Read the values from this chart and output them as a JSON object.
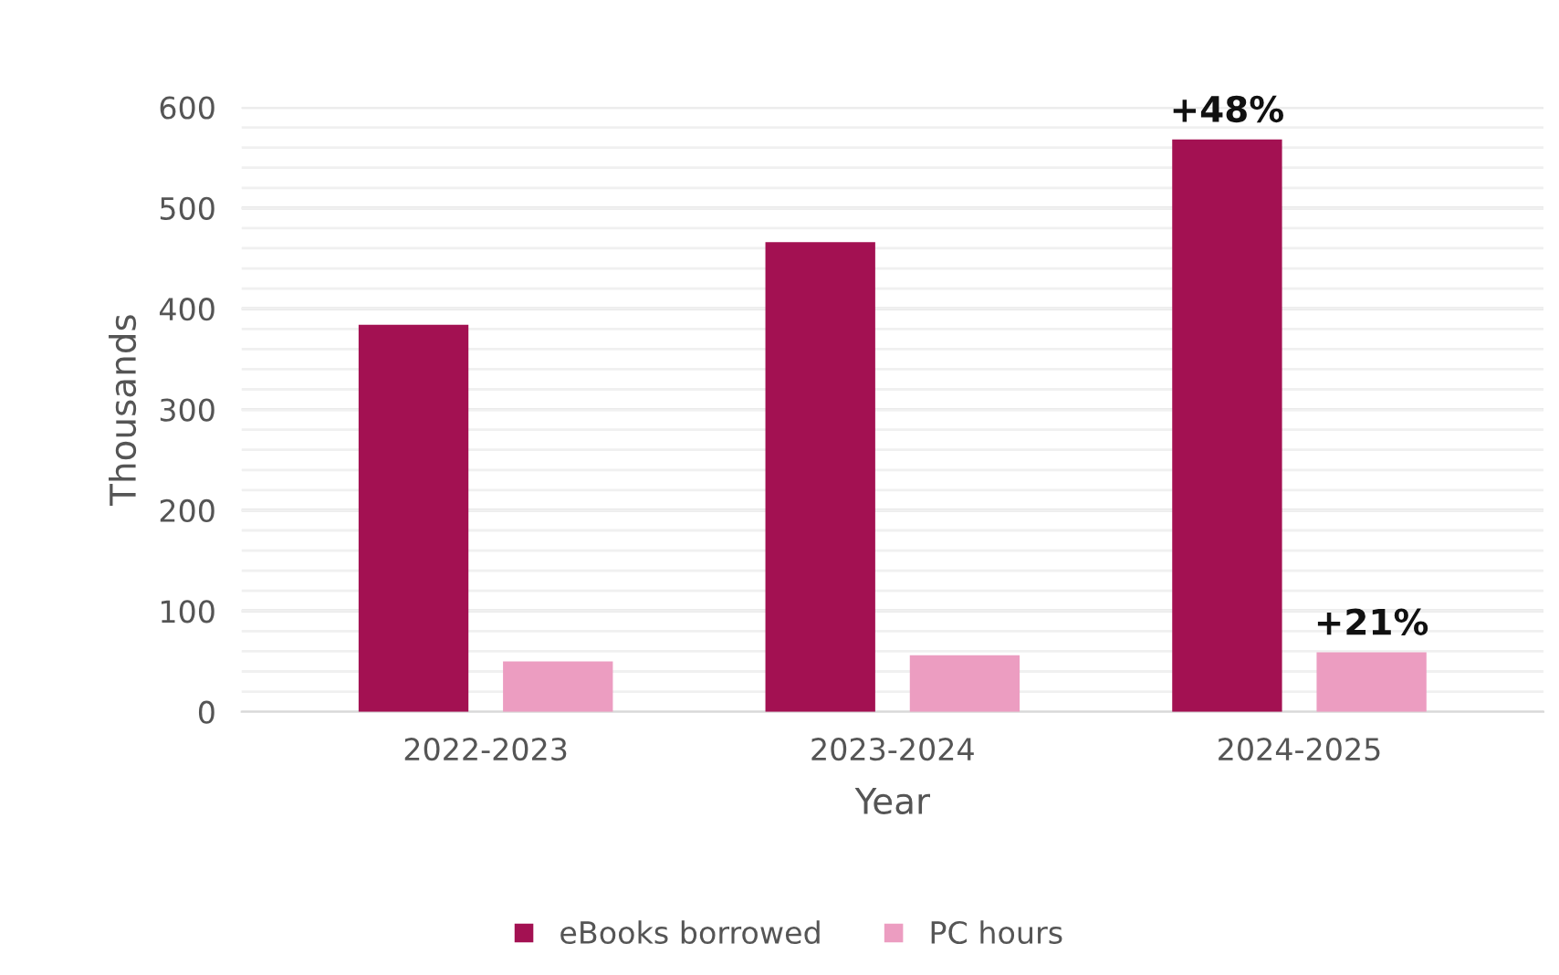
{
  "chart_data": {
    "type": "bar",
    "xlabel": "Year",
    "ylabel": "Thousands",
    "categories": [
      "2022-2023",
      "2023-2024",
      "2024-2025"
    ],
    "series": [
      {
        "name": "eBooks borrowed",
        "color": "#a31152",
        "values": [
          384,
          466,
          568
        ]
      },
      {
        "name": "PC hours",
        "color": "#ec9dc1",
        "values": [
          50,
          56,
          59
        ]
      }
    ],
    "ylim": [
      0,
      600
    ],
    "yticks": [
      0,
      100,
      200,
      300,
      400,
      500,
      600
    ],
    "annotations": [
      "+48%",
      "+21%"
    ],
    "grid": "y",
    "legend": "bottom"
  }
}
